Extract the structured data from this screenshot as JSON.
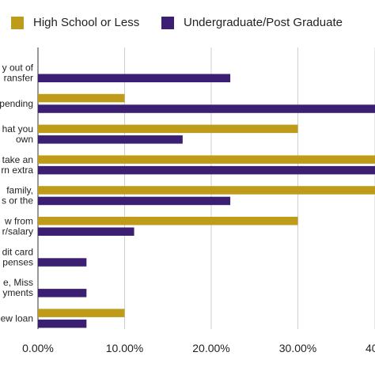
{
  "chart_data": {
    "type": "bar",
    "orientation": "horizontal",
    "title": "",
    "xlabel": "",
    "ylabel": "",
    "xlim": [
      0,
      40
    ],
    "x_tick_labels": [
      "0.00%",
      "10.00%",
      "20.00%",
      "30.00%",
      "40"
    ],
    "grid": true,
    "legend_position": "top",
    "categories": [
      [
        "y out of",
        "ransfer"
      ],
      [
        "pending"
      ],
      [
        "hat you",
        "own"
      ],
      [
        "take an",
        "rn extra"
      ],
      [
        "family,",
        "s or the"
      ],
      [
        "w from",
        "r/salary"
      ],
      [
        "dit card",
        "penses"
      ],
      [
        "e, Miss",
        "yments"
      ],
      [
        "ew loan"
      ]
    ],
    "series": [
      {
        "name": "High School or Less",
        "color": "#bf9b1a",
        "values": [
          0,
          10,
          30,
          42,
          42,
          30,
          0,
          0,
          10
        ]
      },
      {
        "name": "Undergraduate/Post Graduate",
        "color": "#3b1f73",
        "values": [
          22.2,
          42,
          16.7,
          42,
          22.2,
          11.1,
          5.6,
          5.6,
          5.6
        ]
      }
    ]
  }
}
